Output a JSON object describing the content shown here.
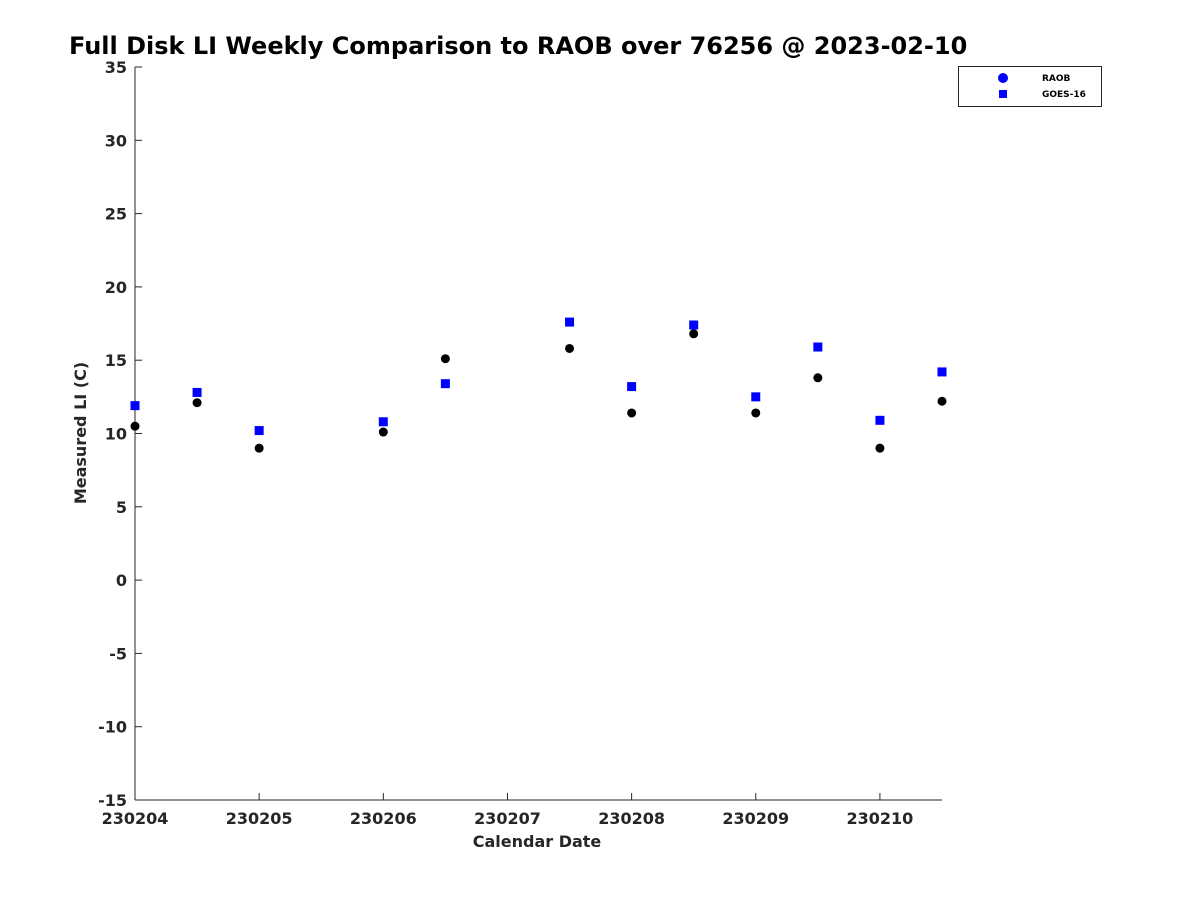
{
  "chart_data": {
    "type": "scatter",
    "title": "Full Disk LI Weekly Comparison to RAOB over 76256 @ 2023-02-10",
    "xlabel": "Calendar Date",
    "ylabel": "Measured LI (C)",
    "xlim": [
      230204,
      230210.5
    ],
    "ylim": [
      -15,
      35
    ],
    "x_ticks": [
      230204,
      230205,
      230206,
      230207,
      230208,
      230209,
      230210
    ],
    "x_tick_labels": [
      "230204",
      "230205",
      "230206",
      "230207",
      "230208",
      "230209",
      "230210"
    ],
    "y_ticks": [
      -15,
      -10,
      -5,
      0,
      5,
      10,
      15,
      20,
      25,
      30,
      35
    ],
    "y_tick_labels": [
      "-15",
      "-10",
      "-5",
      "0",
      "5",
      "10",
      "15",
      "20",
      "25",
      "30",
      "35"
    ],
    "grid": false,
    "legend_position": "top-right",
    "series": [
      {
        "name": "RAOB",
        "marker": "circle",
        "color": "#000000",
        "legend_color": "#0000ff",
        "x": [
          230204,
          230204.5,
          230205,
          230206,
          230206.5,
          230207.5,
          230208,
          230208.5,
          230209,
          230209.5,
          230210,
          230210.5
        ],
        "y": [
          10.5,
          12.1,
          9.0,
          10.1,
          15.1,
          15.8,
          11.4,
          16.8,
          11.4,
          13.8,
          9.0,
          12.2
        ]
      },
      {
        "name": "GOES-16",
        "marker": "square",
        "color": "#0000ff",
        "legend_color": "#0000ff",
        "x": [
          230204,
          230204.5,
          230205,
          230206,
          230206.5,
          230207.5,
          230208,
          230208.5,
          230209,
          230209.5,
          230210,
          230210.5
        ],
        "y": [
          11.9,
          12.8,
          10.2,
          10.8,
          13.4,
          17.6,
          13.2,
          17.4,
          12.5,
          15.9,
          10.9,
          14.2
        ]
      }
    ]
  }
}
